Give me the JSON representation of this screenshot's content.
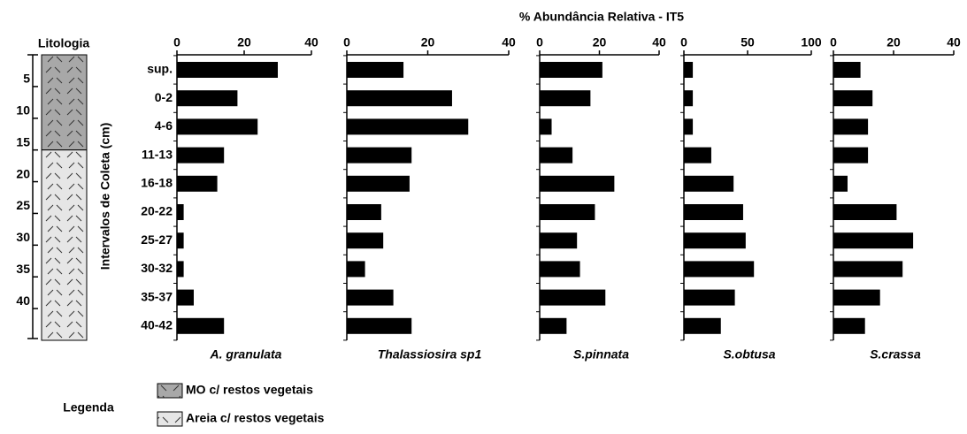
{
  "title": "% Abundância Relativa - IT5",
  "ylabel": "Intervalos de Coleta (cm)",
  "categories": [
    "sup.",
    "0-2",
    "4-6",
    "11-13",
    "16-18",
    "20-22",
    "25-27",
    "30-32",
    "35-37",
    "40-42"
  ],
  "lithology": {
    "title": "Litologia",
    "ylim": [
      0,
      45
    ],
    "yticks": [
      5,
      10,
      15,
      20,
      25,
      30,
      35,
      40
    ],
    "layers": [
      {
        "top": 0,
        "bottom": 15,
        "fill": "#a8a8a8"
      },
      {
        "top": 15,
        "bottom": 45,
        "fill": "#e6e6e6"
      }
    ]
  },
  "legend": {
    "title": "Legenda",
    "entries": [
      "MO c/ restos vegetais",
      "Areia c/ restos vegetais"
    ]
  },
  "chart_data": [
    {
      "type": "bar",
      "orientation": "horizontal",
      "xlabel": "A. granulata",
      "color": "#000000",
      "values": [
        30,
        18,
        24,
        14,
        12,
        2,
        2,
        2,
        5,
        14
      ],
      "xlim": [
        0,
        40
      ],
      "xticks": [
        0,
        20,
        40
      ]
    },
    {
      "type": "bar",
      "orientation": "horizontal",
      "xlabel": "Thalassiosira sp1",
      "color": "#000000",
      "values": [
        14,
        26,
        30,
        16,
        15.5,
        8.5,
        9,
        4.5,
        11.5,
        16
      ],
      "xlim": [
        0,
        40
      ],
      "xticks": [
        0,
        20,
        40
      ]
    },
    {
      "type": "bar",
      "orientation": "horizontal",
      "xlabel": "S.pinnata",
      "color": "#000000",
      "values": [
        21,
        17,
        4,
        11,
        25,
        18.5,
        12.5,
        13.5,
        22,
        9
      ],
      "xlim": [
        0,
        40
      ],
      "xticks": [
        0,
        20,
        40
      ]
    },
    {
      "type": "bar",
      "orientation": "horizontal",
      "xlabel": "S.obtusa",
      "color": "#000000",
      "values": [
        7,
        7,
        7,
        21.5,
        39,
        46.5,
        48.5,
        55,
        40,
        29
      ],
      "xlim": [
        0,
        100
      ],
      "xticks": [
        0,
        50,
        100
      ]
    },
    {
      "type": "bar",
      "orientation": "horizontal",
      "xlabel": "S.crassa",
      "color": "#000000",
      "values": [
        9,
        13,
        11.5,
        11.5,
        4.7,
        21,
        26.5,
        23,
        15.5,
        10.5
      ],
      "xlim": [
        0,
        40
      ],
      "xticks": [
        0,
        20,
        40
      ]
    }
  ]
}
